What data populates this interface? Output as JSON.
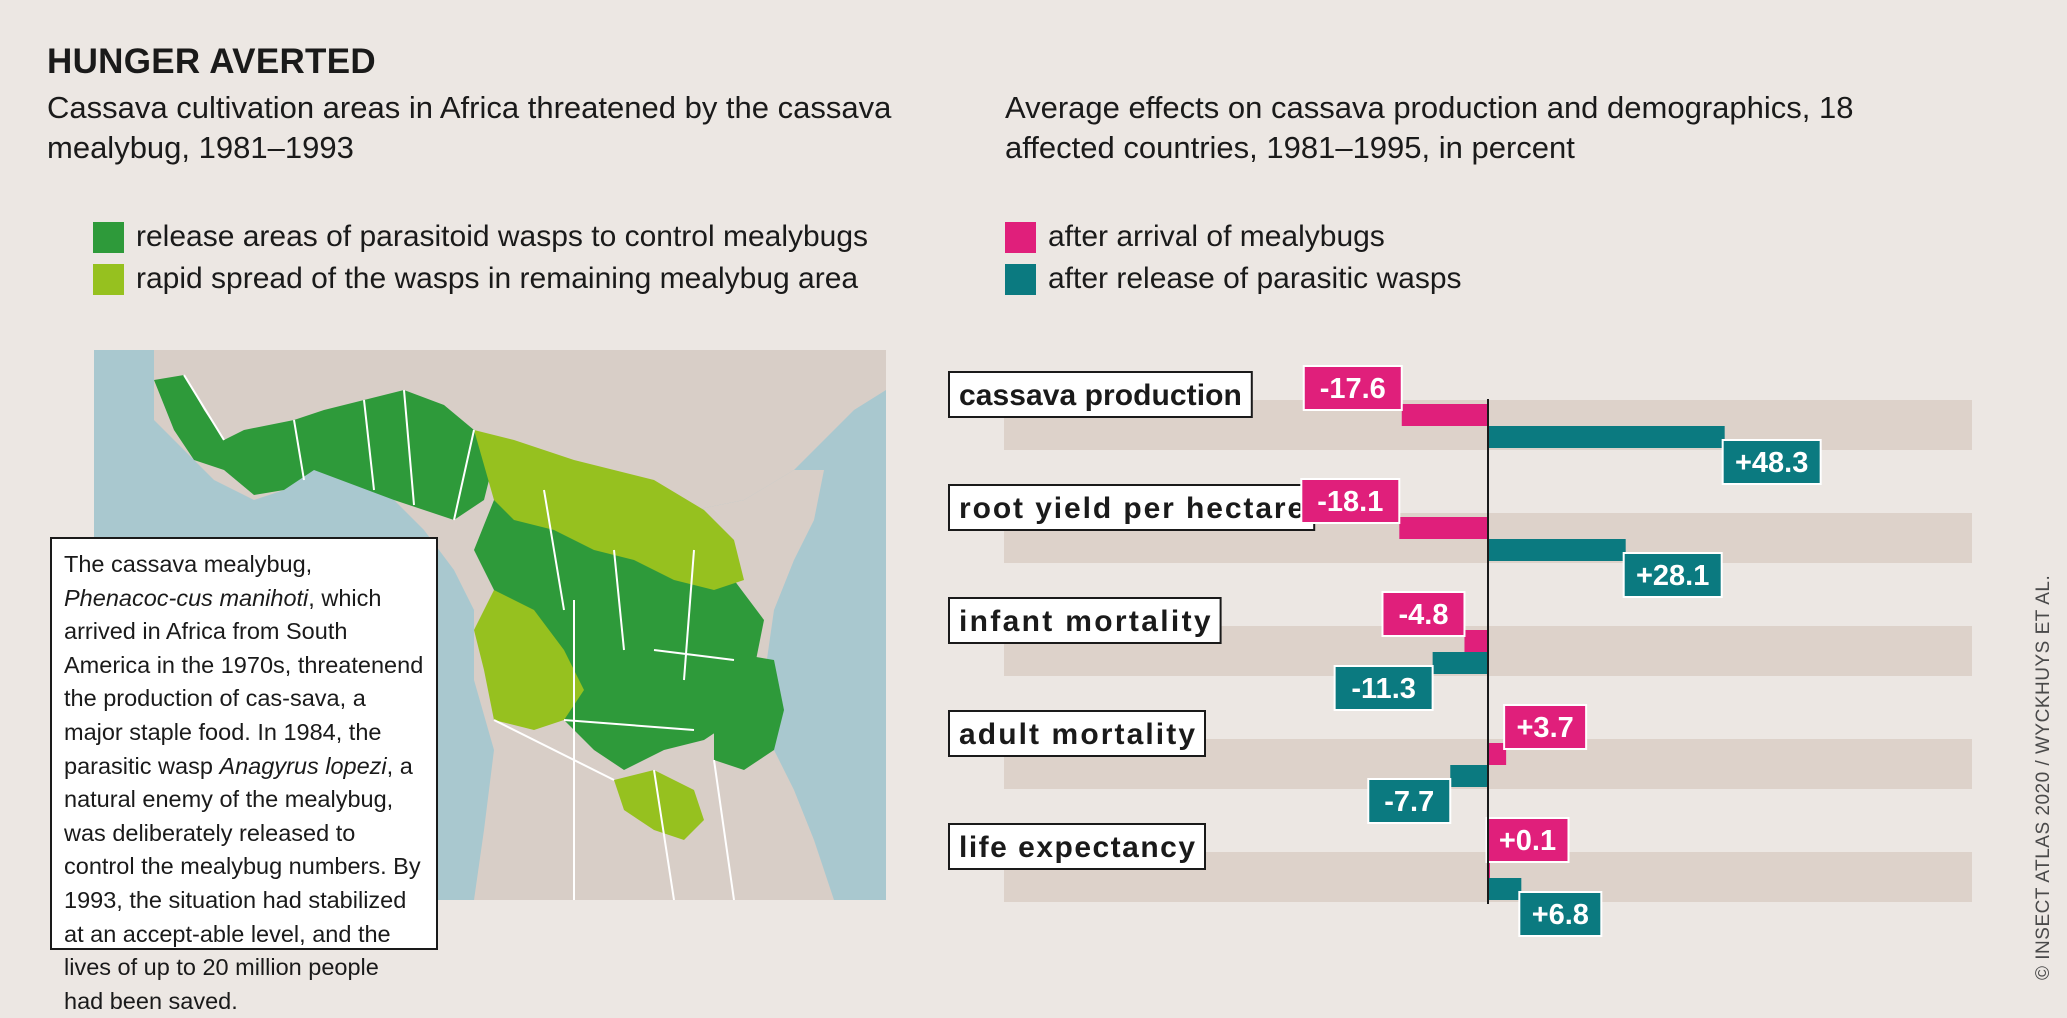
{
  "title": "HUNGER AVERTED",
  "map": {
    "subtitle": "Cassava cultivation areas in Africa threatened by the cassava mealybug, 1981–1993",
    "legend": [
      {
        "label": "release areas of parasitoid wasps to control mealybugs",
        "color": "#2e9a3a"
      },
      {
        "label": "rapid spread of the wasps in remaining mealybug area",
        "color": "#96c11f"
      }
    ],
    "colors": {
      "sea": "#a9c8cf",
      "land": "#d8cec7",
      "border": "#ffffff"
    },
    "note": [
      {
        "text": "The cassava mealybug, "
      },
      {
        "text": "Phenacoc-",
        "italic": true
      },
      {
        "text": "cus manihoti",
        "italic": true
      },
      {
        "text": ", which arrived in Africa from South America in the 1970s, threatenend the production of cas-sava, a major staple food. In 1984, the parasitic wasp "
      },
      {
        "text": "Anagyrus lopezi",
        "italic": true
      },
      {
        "text": ", a natural enemy of the mealybug, was deliberately released to control the mealybug numbers. By 1993, the situation had stabilized at an accept-able level, and the lives of up to 20 million people had been saved."
      }
    ]
  },
  "chart_data": {
    "type": "bar",
    "orientation": "horizontal",
    "title": "Average effects on cassava production and demographics, 18 affected countries, 1981–1995, in percent",
    "categories": [
      "cassava production",
      "root yield per hectare",
      "infant mortality",
      "adult mortality",
      "life expectancy"
    ],
    "series": [
      {
        "name": "after arrival of mealybugs",
        "color": "#e01f7b",
        "values": [
          -17.6,
          -18.1,
          -4.8,
          3.7,
          0.1
        ],
        "labels": [
          "-17.6",
          "-18.1",
          "-4.8",
          "+3.7",
          "+0.1"
        ]
      },
      {
        "name": "after release of parasitic wasps",
        "color": "#0b7a80",
        "values": [
          48.3,
          28.1,
          -11.3,
          -7.7,
          6.8
        ],
        "labels": [
          "+48.3",
          "+28.1",
          "-11.3",
          "-7.7",
          "+6.8"
        ]
      }
    ],
    "xlim": [
      -50,
      50
    ],
    "band_color": "#ddd2ca",
    "grid": false,
    "legend_position": "top"
  },
  "credit": "© INSECT ATLAS 2020 / WYCKHUYS ET AL."
}
